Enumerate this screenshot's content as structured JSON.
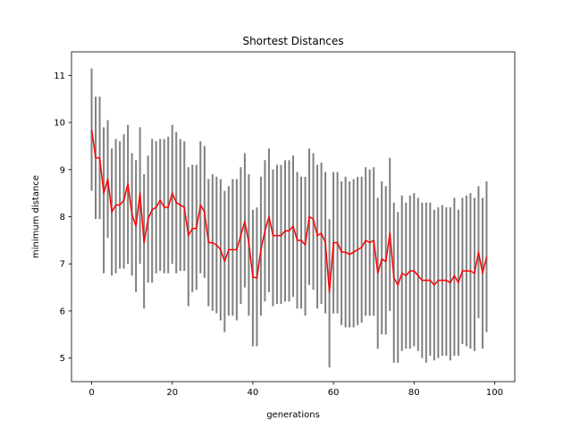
{
  "chart_data": {
    "type": "line",
    "title": "Shortest Distances",
    "xlabel": "generations",
    "ylabel": "minimum distance",
    "xlim": [
      -5,
      105
    ],
    "ylim": [
      4.5,
      11.5
    ],
    "xticks": [
      0,
      20,
      40,
      60,
      80,
      100
    ],
    "yticks": [
      5,
      6,
      7,
      8,
      9,
      10,
      11
    ],
    "grid": false,
    "legend": "none",
    "colors": {
      "mean_line": "#ff0000",
      "error_bars": "#808080"
    },
    "series": [
      {
        "x": [
          0,
          1,
          2,
          3,
          4,
          5,
          6,
          7,
          8,
          9,
          10,
          11,
          12,
          13,
          14,
          15,
          16,
          17,
          18,
          19,
          20,
          21,
          22,
          23,
          24,
          25,
          26,
          27,
          28,
          29,
          30,
          31,
          32,
          33,
          34,
          35,
          36,
          37,
          38,
          39,
          40,
          41,
          42,
          43,
          44,
          45,
          46,
          47,
          48,
          49,
          50,
          51,
          52,
          53,
          54,
          55,
          56,
          57,
          58,
          59,
          60,
          61,
          62,
          63,
          64,
          65,
          66,
          67,
          68,
          69,
          70,
          71,
          72,
          73,
          74,
          75,
          76,
          77,
          78,
          79,
          80,
          81,
          82,
          83,
          84,
          85,
          86,
          87,
          88,
          89,
          90,
          91,
          92,
          93,
          94,
          95,
          96,
          97,
          98,
          99
        ],
        "mean": [
          9.85,
          9.25,
          9.25,
          8.5,
          8.8,
          8.1,
          8.25,
          8.25,
          8.35,
          8.7,
          8.05,
          7.8,
          8.5,
          7.45,
          7.95,
          8.15,
          8.2,
          8.35,
          8.2,
          8.2,
          8.5,
          8.3,
          8.25,
          8.2,
          7.6,
          7.75,
          7.75,
          8.25,
          8.1,
          7.45,
          7.45,
          7.4,
          7.3,
          7.05,
          7.3,
          7.3,
          7.3,
          7.6,
          7.9,
          7.45,
          6.72,
          6.7,
          7.3,
          7.7,
          8.0,
          7.6,
          7.6,
          7.6,
          7.7,
          7.7,
          7.8,
          7.5,
          7.5,
          7.4,
          8.0,
          7.95,
          7.6,
          7.65,
          7.45,
          6.4,
          7.45,
          7.45,
          7.25,
          7.25,
          7.2,
          7.25,
          7.3,
          7.35,
          7.5,
          7.45,
          7.5,
          6.8,
          7.1,
          7.05,
          7.65,
          6.7,
          6.55,
          6.8,
          6.75,
          6.85,
          6.85,
          6.75,
          6.65,
          6.65,
          6.65,
          6.55,
          6.65,
          6.65,
          6.65,
          6.6,
          6.75,
          6.6,
          6.85,
          6.85,
          6.85,
          6.8,
          7.25,
          6.8,
          7.15,
          null
        ],
        "lower": [
          8.55,
          7.95,
          7.95,
          6.8,
          7.55,
          6.75,
          6.8,
          6.9,
          6.9,
          7.0,
          6.75,
          6.4,
          7.0,
          6.05,
          6.6,
          6.6,
          6.8,
          6.85,
          6.8,
          6.8,
          7.0,
          6.8,
          6.85,
          6.85,
          6.1,
          6.4,
          6.45,
          6.8,
          6.7,
          6.1,
          6.0,
          5.95,
          5.8,
          5.55,
          5.9,
          5.9,
          5.8,
          6.15,
          6.5,
          5.9,
          5.25,
          5.25,
          5.9,
          6.2,
          6.4,
          6.1,
          6.15,
          6.15,
          6.2,
          6.2,
          6.3,
          6.05,
          6.05,
          5.9,
          6.55,
          6.45,
          6.05,
          6.15,
          5.95,
          4.8,
          5.95,
          5.95,
          5.7,
          5.65,
          5.65,
          5.65,
          5.7,
          5.75,
          5.9,
          5.9,
          5.9,
          5.2,
          5.5,
          5.5,
          6.0,
          4.9,
          4.9,
          5.15,
          5.2,
          5.2,
          5.25,
          5.15,
          5.0,
          4.9,
          5.05,
          4.95,
          5.0,
          5.05,
          5.05,
          4.95,
          5.05,
          5.05,
          5.3,
          5.25,
          5.2,
          5.15,
          5.85,
          5.2,
          5.55,
          null
        ],
        "upper": [
          11.15,
          10.55,
          10.55,
          9.9,
          10.05,
          9.45,
          9.65,
          9.6,
          9.75,
          9.95,
          9.35,
          9.2,
          9.9,
          8.9,
          9.3,
          9.65,
          9.6,
          9.65,
          9.65,
          9.7,
          9.95,
          9.8,
          9.65,
          9.6,
          9.05,
          9.1,
          9.1,
          9.6,
          9.5,
          8.8,
          8.9,
          8.85,
          8.8,
          8.55,
          8.65,
          8.8,
          8.8,
          9.05,
          9.35,
          8.9,
          8.15,
          8.2,
          8.85,
          9.2,
          9.45,
          9.0,
          9.1,
          9.1,
          9.2,
          9.2,
          9.3,
          8.95,
          8.85,
          8.85,
          9.45,
          9.35,
          9.1,
          9.15,
          8.95,
          7.95,
          8.95,
          8.95,
          8.75,
          8.85,
          8.75,
          8.8,
          8.85,
          8.85,
          9.05,
          9.0,
          9.05,
          8.4,
          8.75,
          8.65,
          9.25,
          8.3,
          8.1,
          8.45,
          8.3,
          8.45,
          8.5,
          8.4,
          8.3,
          8.3,
          8.3,
          8.15,
          8.2,
          8.25,
          8.2,
          8.2,
          8.4,
          8.15,
          8.4,
          8.45,
          8.5,
          8.4,
          8.65,
          8.4,
          8.75,
          null
        ]
      }
    ]
  }
}
